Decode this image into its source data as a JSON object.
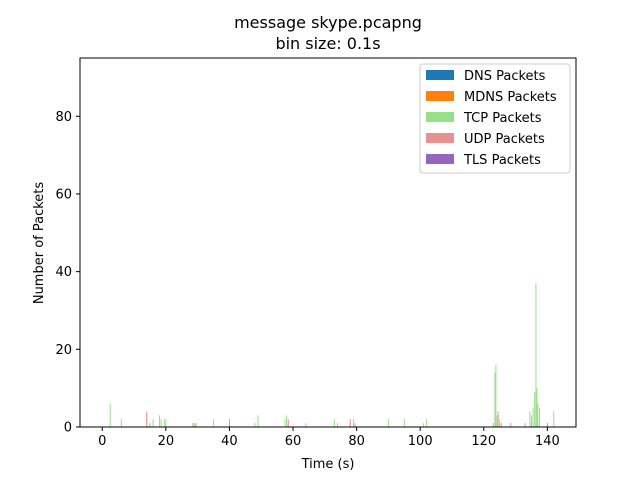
{
  "chart_data": {
    "type": "bar",
    "title": "message skype.pcapng",
    "subtitle": "bin size: 0.1s",
    "xlabel": "Time (s)",
    "ylabel": "Number of Packets",
    "xlim": [
      -7,
      149
    ],
    "ylim": [
      0,
      95
    ],
    "xticks": [
      0,
      20,
      40,
      60,
      80,
      100,
      120,
      140
    ],
    "yticks": [
      0,
      20,
      40,
      60,
      80
    ],
    "bin_size": 0.1,
    "legend_position": "top-right",
    "grid": false,
    "series": [
      {
        "name": "DNS Packets",
        "color": "#1f77b4",
        "points": []
      },
      {
        "name": "MDNS Packets",
        "color": "#ff7f0e",
        "points": []
      },
      {
        "name": "TCP Packets",
        "color": "#98df8a",
        "points": [
          [
            2.5,
            6
          ],
          [
            6,
            2
          ],
          [
            14,
            2
          ],
          [
            16,
            2
          ],
          [
            18,
            3
          ],
          [
            18.5,
            2
          ],
          [
            19.5,
            2
          ],
          [
            20,
            2
          ],
          [
            29,
            1
          ],
          [
            35,
            2
          ],
          [
            40,
            1
          ],
          [
            48,
            1
          ],
          [
            49,
            3
          ],
          [
            57.5,
            2
          ],
          [
            58,
            3
          ],
          [
            58.5,
            1
          ],
          [
            64,
            1
          ],
          [
            73,
            2
          ],
          [
            74,
            1
          ],
          [
            78,
            1
          ],
          [
            79,
            2
          ],
          [
            90,
            2
          ],
          [
            95,
            2
          ],
          [
            101,
            1
          ],
          [
            102,
            2
          ],
          [
            123.5,
            14
          ],
          [
            123.8,
            16
          ],
          [
            124.2,
            3
          ],
          [
            125,
            2
          ],
          [
            134.5,
            4
          ],
          [
            135,
            3
          ],
          [
            135.5,
            5
          ],
          [
            136,
            9
          ],
          [
            136.4,
            37
          ],
          [
            136.7,
            10
          ],
          [
            137,
            6
          ],
          [
            137.5,
            5
          ],
          [
            142,
            4
          ]
        ]
      },
      {
        "name": "UDP Packets",
        "color": "#e6908f",
        "points": [
          [
            14,
            4
          ],
          [
            15,
            1
          ],
          [
            28.5,
            1
          ],
          [
            29.5,
            1
          ],
          [
            40,
            2
          ],
          [
            58.5,
            2
          ],
          [
            78,
            2
          ],
          [
            79.5,
            1
          ],
          [
            123,
            1
          ],
          [
            124.5,
            4
          ],
          [
            125.5,
            1
          ],
          [
            128.5,
            1
          ],
          [
            133,
            1
          ],
          [
            135,
            1
          ],
          [
            140,
            1
          ]
        ]
      },
      {
        "name": "TLS Packets",
        "color": "#9467bd",
        "points": []
      }
    ]
  }
}
